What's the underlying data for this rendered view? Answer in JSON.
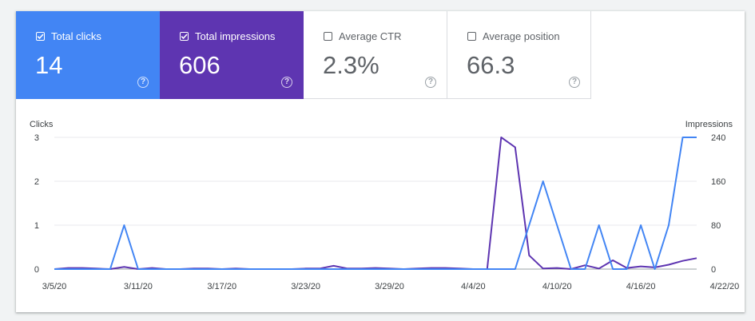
{
  "metrics": [
    {
      "label": "Total clicks",
      "value": "14",
      "checked": true,
      "color": "#4285f4"
    },
    {
      "label": "Total impressions",
      "value": "606",
      "checked": true,
      "color": "#5e35b1"
    },
    {
      "label": "Average CTR",
      "value": "2.3%",
      "checked": false
    },
    {
      "label": "Average position",
      "value": "66.3",
      "checked": false
    }
  ],
  "help_glyph": "?",
  "chart_data": {
    "type": "line",
    "left_axis_label": "Clicks",
    "right_axis_label": "Impressions",
    "left_ylim": [
      0,
      3
    ],
    "right_ylim": [
      0,
      240
    ],
    "left_ticks": [
      "0",
      "1",
      "2",
      "3"
    ],
    "right_ticks": [
      "0",
      "80",
      "160",
      "240"
    ],
    "x_labels": [
      "3/5/20",
      "3/11/20",
      "3/17/20",
      "3/23/20",
      "3/29/20",
      "4/4/20",
      "4/10/20",
      "4/16/20",
      "4/22/20"
    ],
    "x_start": "3/5/20",
    "x_end": "4/22/20",
    "grid": true,
    "series": [
      {
        "name": "Clicks",
        "axis": "left",
        "color": "#4285f4",
        "values": [
          0,
          0,
          0,
          0,
          0,
          1,
          0,
          0,
          0,
          0,
          0,
          0,
          0,
          0,
          0,
          0,
          0,
          0,
          0,
          0,
          0,
          0,
          0,
          0,
          0,
          0,
          0,
          0,
          0,
          0,
          0,
          0,
          0,
          0,
          1,
          2,
          1,
          0,
          0,
          1,
          0,
          0,
          1,
          0,
          1,
          3,
          3
        ]
      },
      {
        "name": "Impressions",
        "axis": "right",
        "color": "#5e35b1",
        "values": [
          0,
          2,
          2,
          1,
          0,
          4,
          0,
          2,
          0,
          0,
          1,
          1,
          0,
          1,
          0,
          0,
          0,
          0,
          1,
          1,
          6,
          1,
          1,
          2,
          1,
          0,
          1,
          2,
          2,
          1,
          0,
          0,
          240,
          222,
          25,
          1,
          2,
          0,
          7,
          1,
          16,
          2,
          5,
          3,
          8,
          15,
          20
        ]
      }
    ]
  }
}
